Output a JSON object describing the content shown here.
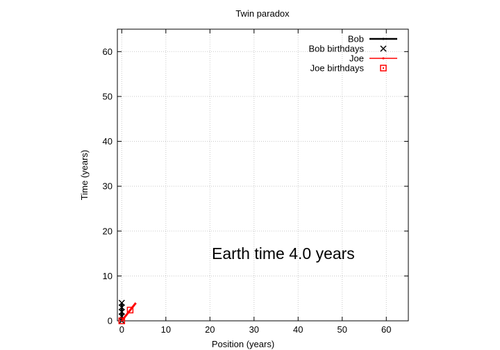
{
  "chart_data": {
    "type": "line",
    "title": "Twin paradox",
    "xlabel": "Position (years)",
    "ylabel": "Time (years)",
    "xlim": [
      -1,
      65
    ],
    "ylim": [
      0,
      65
    ],
    "xticks": [
      0,
      10,
      20,
      30,
      40,
      50,
      60
    ],
    "yticks": [
      0,
      10,
      20,
      30,
      40,
      50,
      60
    ],
    "grid": true,
    "legend_position": "top-right",
    "annotation": "Earth time  4.0 years",
    "series": [
      {
        "name": "Bob",
        "kind": "line",
        "color": "#000000",
        "x": [
          0,
          0
        ],
        "y": [
          0,
          4.0
        ]
      },
      {
        "name": "Bob birthdays",
        "kind": "points",
        "marker": "x",
        "color": "#000000",
        "x": [
          0,
          0,
          0,
          0,
          0
        ],
        "y": [
          0,
          1,
          2,
          3,
          4
        ]
      },
      {
        "name": "Joe",
        "kind": "line",
        "color": "#ff0000",
        "x": [
          0,
          3.2
        ],
        "y": [
          0,
          4.0
        ]
      },
      {
        "name": "Joe birthdays",
        "kind": "points",
        "marker": "square",
        "color": "#ff0000",
        "x": [
          0,
          1.9
        ],
        "y": [
          0,
          2.4
        ]
      }
    ]
  }
}
